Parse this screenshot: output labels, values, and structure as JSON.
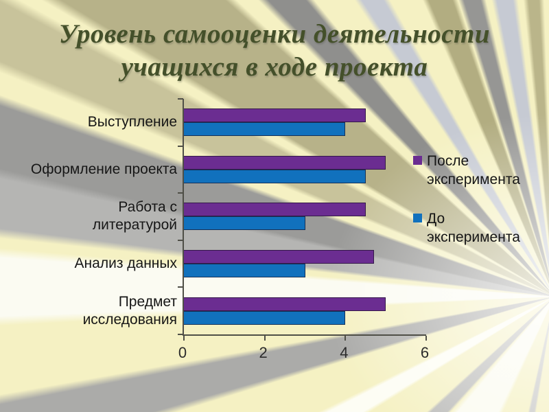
{
  "slide": {
    "title": "Уровень самооценки деятельности учащихся в ходе проекта",
    "title_lines": [
      "Уровень самооценки деятельности",
      "учащихся в ходе проекта"
    ]
  },
  "chart_data": {
    "type": "bar",
    "orientation": "horizontal",
    "title": "Уровень самооценки деятельности учащихся в ходе проекта",
    "categories": [
      "Выступление",
      "Оформление проекта",
      "Работа с\nлитературой",
      "Анализ данных",
      "Предмет\nисследования"
    ],
    "series": [
      {
        "name": "После эксперимента",
        "color": "#6b2d91",
        "values": [
          4.5,
          5,
          4.5,
          4.7,
          5
        ]
      },
      {
        "name": "До эксперимента",
        "color": "#1171bd",
        "values": [
          4,
          4.5,
          3,
          3,
          4
        ]
      }
    ],
    "xlim": [
      0,
      6
    ],
    "x_ticks": [
      "0",
      "2",
      "4",
      "6"
    ],
    "grid": false,
    "legend_position": "right"
  },
  "colors": {
    "background_cream": "#f5f1c3",
    "ray_olive": "#b7b289",
    "ray_gray": "#9b9b99",
    "ray_silver_blue": "#c6cad3",
    "title_text": "#44502a",
    "axis": "#4f4f47",
    "label_text": "#161616",
    "series_after": "#6b2d91",
    "series_before": "#1171bd"
  }
}
